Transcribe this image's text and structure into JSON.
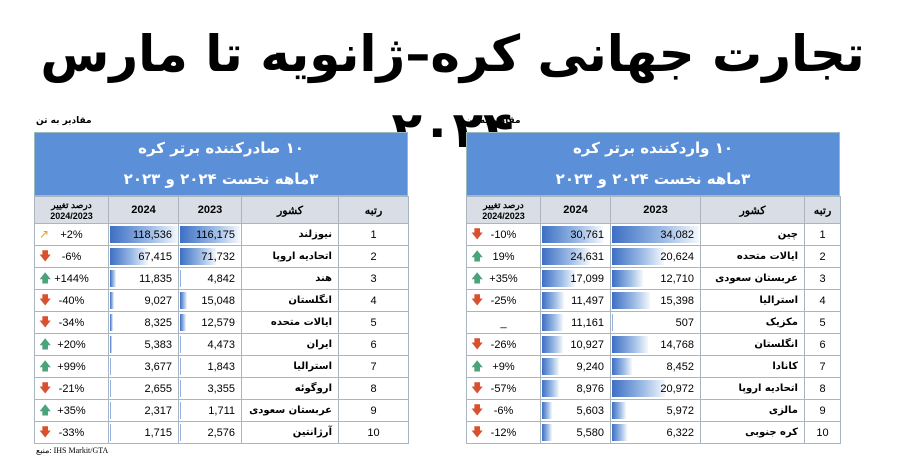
{
  "title": "تجارت جهانی کره–ژانویه تا مارس ۲۰۲۴",
  "left_panel": {
    "unit_note": "مقادیر به تن",
    "heading_line1": "۱۰ صادرکننده برتر کره",
    "heading_line2": "۳ماهه نخست ۲۰۲۴ و ۲۰۲۳",
    "columns": {
      "rank": "رتبه",
      "country": "کشور",
      "y2023": "2023",
      "y2024": "2024",
      "change": "درصد تغییر 2024/2023"
    },
    "rows": [
      {
        "rank": "1",
        "country": "نیوزلند",
        "v2023": "116,175",
        "v2024": "118,536",
        "change": "+2%",
        "arrow": "↗",
        "dir": "diag",
        "f2023": 0.98,
        "f2024": 1.0
      },
      {
        "rank": "2",
        "country": "اتحادیه اروپا",
        "v2023": "71,732",
        "v2024": "67,415",
        "change": "-6%",
        "arrow": "🡇",
        "dir": "down",
        "f2023": 0.6,
        "f2024": 0.57
      },
      {
        "rank": "3",
        "country": "هند",
        "v2023": "4,842",
        "v2024": "11,835",
        "change": "+144%",
        "arrow": "🡅",
        "dir": "up",
        "f2023": 0.04,
        "f2024": 0.1
      },
      {
        "rank": "4",
        "country": "انگلستان",
        "v2023": "15,048",
        "v2024": "9,027",
        "change": "-40%",
        "arrow": "🡇",
        "dir": "down",
        "f2023": 0.13,
        "f2024": 0.08
      },
      {
        "rank": "5",
        "country": "ایالات متحده",
        "v2023": "12,579",
        "v2024": "8,325",
        "change": "-34%",
        "arrow": "🡇",
        "dir": "down",
        "f2023": 0.11,
        "f2024": 0.07
      },
      {
        "rank": "6",
        "country": "ایران",
        "v2023": "4,473",
        "v2024": "5,383",
        "change": "+20%",
        "arrow": "🡅",
        "dir": "up",
        "f2023": 0.04,
        "f2024": 0.05
      },
      {
        "rank": "7",
        "country": "استرالیا",
        "v2023": "1,843",
        "v2024": "3,677",
        "change": "+99%",
        "arrow": "🡅",
        "dir": "up",
        "f2023": 0.02,
        "f2024": 0.03
      },
      {
        "rank": "8",
        "country": "اروگوئه",
        "v2023": "3,355",
        "v2024": "2,655",
        "change": "-21%",
        "arrow": "🡇",
        "dir": "down",
        "f2023": 0.03,
        "f2024": 0.02
      },
      {
        "rank": "9",
        "country": "عربستان سعودی",
        "v2023": "1,711",
        "v2024": "2,317",
        "change": "+35%",
        "arrow": "🡅",
        "dir": "up",
        "f2023": 0.015,
        "f2024": 0.02
      },
      {
        "rank": "10",
        "country": "آرژانتین",
        "v2023": "2,576",
        "v2024": "1,715",
        "change": "-33%",
        "arrow": "🡇",
        "dir": "down",
        "f2023": 0.02,
        "f2024": 0.015
      }
    ],
    "source": "منبع: IHS Markit/GTA"
  },
  "right_panel": {
    "unit_note": "مقادیر به تن",
    "heading_line1": "۱۰ واردکننده برتر کره",
    "heading_line2": "۳ماهه نخست ۲۰۲۴ و ۲۰۲۳",
    "columns": {
      "rank": "رتبه",
      "country": "کشور",
      "y2023": "2023",
      "y2024": "2024",
      "change": "درصد تغییر 2024/2023"
    },
    "rows": [
      {
        "rank": "1",
        "country": "چین",
        "v2023": "34,082",
        "v2024": "30,761",
        "change": "-10%",
        "arrow": "🡇",
        "dir": "down",
        "f2023": 1.0,
        "f2024": 0.9
      },
      {
        "rank": "2",
        "country": "ایالات متحده",
        "v2023": "20,624",
        "v2024": "24,631",
        "change": "19%",
        "arrow": "🡅",
        "dir": "up",
        "f2023": 0.6,
        "f2024": 0.72
      },
      {
        "rank": "3",
        "country": "عربستان سعودی",
        "v2023": "12,710",
        "v2024": "17,099",
        "change": "+35%",
        "arrow": "🡅",
        "dir": "up",
        "f2023": 0.37,
        "f2024": 0.5
      },
      {
        "rank": "4",
        "country": "استرالیا",
        "v2023": "15,398",
        "v2024": "11,497",
        "change": "-25%",
        "arrow": "🡇",
        "dir": "down",
        "f2023": 0.45,
        "f2024": 0.34
      },
      {
        "rank": "5",
        "country": "مکزیک",
        "v2023": "507",
        "v2024": "11,161",
        "change": "_",
        "arrow": "",
        "dir": "none",
        "f2023": 0.015,
        "f2024": 0.33
      },
      {
        "rank": "6",
        "country": "انگلستان",
        "v2023": "14,768",
        "v2024": "10,927",
        "change": "-26%",
        "arrow": "🡇",
        "dir": "down",
        "f2023": 0.43,
        "f2024": 0.32
      },
      {
        "rank": "7",
        "country": "کانادا",
        "v2023": "8,452",
        "v2024": "9,240",
        "change": "+9%",
        "arrow": "🡅",
        "dir": "up",
        "f2023": 0.25,
        "f2024": 0.27
      },
      {
        "rank": "8",
        "country": "اتحادیه اروپا",
        "v2023": "20,972",
        "v2024": "8,976",
        "change": "-57%",
        "arrow": "🡇",
        "dir": "down",
        "f2023": 0.62,
        "f2024": 0.26
      },
      {
        "rank": "9",
        "country": "مالزی",
        "v2023": "5,972",
        "v2024": "5,603",
        "change": "-6%",
        "arrow": "🡇",
        "dir": "down",
        "f2023": 0.18,
        "f2024": 0.16
      },
      {
        "rank": "10",
        "country": "کره جنوبی",
        "v2023": "6,322",
        "v2024": "5,580",
        "change": "-12%",
        "arrow": "🡇",
        "dir": "down",
        "f2023": 0.19,
        "f2024": 0.16
      }
    ]
  }
}
